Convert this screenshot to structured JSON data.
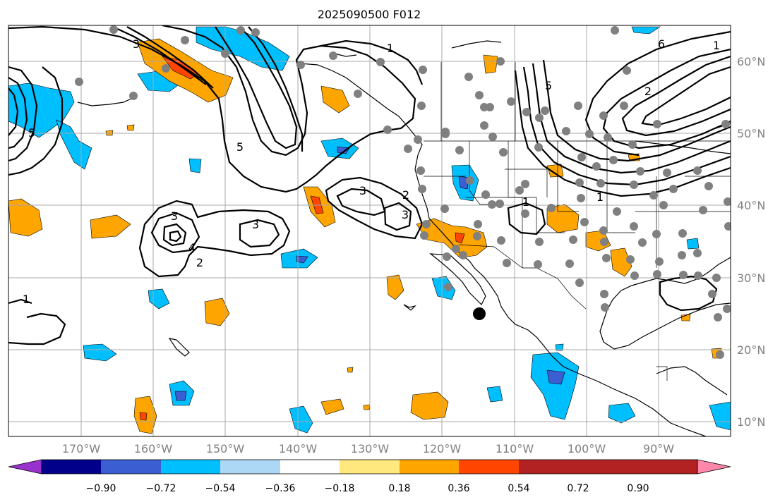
{
  "title": "2025090500 F012",
  "lon_labels": [
    "170°W",
    "160°W",
    "150°W",
    "140°W",
    "130°W",
    "120°W",
    "110°W",
    "100°W",
    "90°W"
  ],
  "lat_labels": [
    "60°N",
    "50°N",
    "40°N",
    "30°N",
    "20°N",
    "10°N"
  ],
  "colorbar": {
    "ticks": [
      "−0.90",
      "−0.72",
      "−0.54",
      "−0.36",
      "−0.18",
      "0.18",
      "0.36",
      "0.54",
      "0.72",
      "0.90"
    ],
    "colors": [
      "#9932cc",
      "#00008b",
      "#3b5ed2",
      "#00bfff",
      "#add8f5",
      "#ffffff",
      "#ffe97f",
      "#ffa500",
      "#ff4500",
      "#b22222",
      "#ff88aa"
    ]
  },
  "contour_labels": [
    "1",
    "1",
    "1",
    "1",
    "2",
    "2",
    "3",
    "3",
    "3",
    "3",
    "4",
    "5",
    "5",
    "5",
    "6",
    "1",
    "2",
    "3"
  ],
  "colors": {
    "negative_fill": "#00bfff",
    "negative_strong": "#3b5ed2",
    "positive_fill": "#ffa500",
    "positive_strong": "#ff4500",
    "station_dot": "#808080"
  }
}
